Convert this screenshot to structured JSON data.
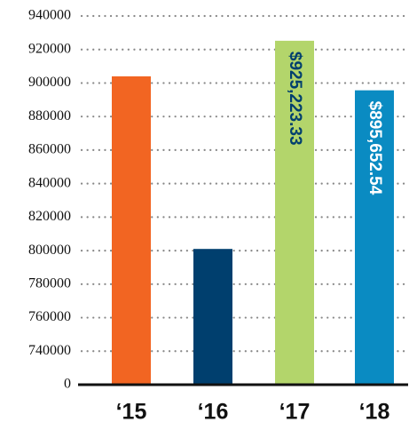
{
  "chart_data": {
    "type": "bar",
    "categories": [
      "‘15",
      "‘16",
      "‘17",
      "‘18"
    ],
    "values": [
      904000,
      801000,
      925223.33,
      895652.54
    ],
    "value_labels": [
      null,
      null,
      "$925,223.33",
      "$895,652.54"
    ],
    "value_label_colors": [
      null,
      null,
      "#003f6e",
      "#ffffff"
    ],
    "colors": [
      "#f26522",
      "#003f6e",
      "#b3d56b",
      "#0a8bc2"
    ],
    "ylim": [
      0,
      940000
    ],
    "yticks": [
      0,
      740000,
      760000,
      780000,
      800000,
      820000,
      840000,
      860000,
      880000,
      900000,
      920000,
      940000
    ],
    "grid": true
  }
}
